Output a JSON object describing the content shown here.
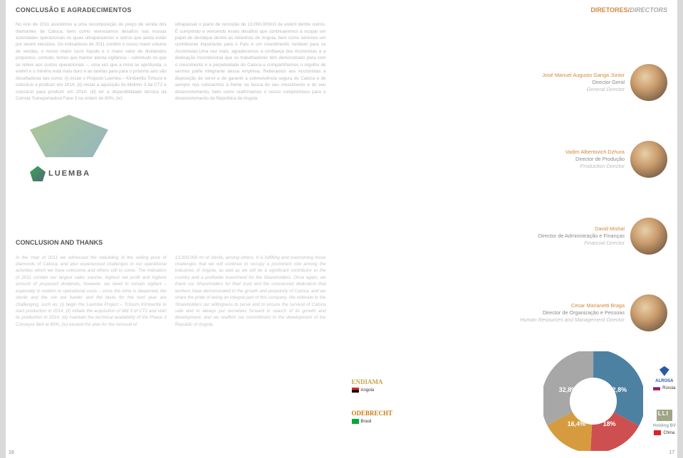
{
  "left": {
    "heading_pt": "CONCLUSÃO E AGRADECIMENTOS",
    "heading_en": "CONCLUSION AND THANKS",
    "pt_col1": "No Ano de 2011 assistimos a uma recomposição do preço de venda dos diamantes de Catoca, bem como vivenciamos desafios nas nossas actividades operacionais os quais ultrapassamos e outros que ainda estão por serem vencidos. Os indicadores de 2011 contêm o nosso maior volume de vendas, o nosso maior lucro líquido e o maior valor de dividendos propostos; contudo, temos que manter atenta vigilância – sobretudo no que se refere aos custos operacionais –, uma vez que a mina se aprofunda, o estéril e o minério está mais duro e as tarefas para para o próximo ano são desafiadoras tais como: (i) iniciar o Projecto Luemba – Kimberlito Tchiuzo e colocá-lo a produzir em 2014, (ii) iniciar a aquisição do Moinho 3 da CT2 e colocá-lo para produzir em 2014, (iii) ter a disponibilidade técnica da Correia Transportadora Fase 3 na ordem de 80%, (iv)",
    "pt_col2": "ultrapassar o plano de remoção de 13.000.000m3 de estéril dentre outros. É cumprindo e vencendo esses desafios que continuaremos a ocupar um papel de destaque dentre as indústrias de Angola, bem como seremos um contribuinte importante para o País e um investimento rentável para os Accionistas.Uma vez mais, agradecemos a confiança dos Accionistas e a dedicação incondicional que os trabalhadores têm demonstrado para com o crescimento e a perpetuidade do Catoca e compartilhamos o orgulho de sermos parte integrante dessa empresa. Reiteramos aos Accionistas a disposição de servir e de garantir a sobrevivência segura do Catoca e de sempre nos colocarmos à frente na busca do seu crescimento e do seu desenvolvimento, bem como reafirmamos o nosso compromisso para o desenvolvimento da República de Angola.",
    "en_col1": "In the Year of 2011 we witnessed the rebuilding of the selling price of diamonds of Catoca, and also experienced challenges in our operational activities which we have overcome and others still to come. The indicators of 2011 contain our largest sales volume, highest net profit and highest amount of proposed dividends; however, we need to remain vigilant – especially in relation to operational costs – since the mine is deepened, the sterile and the ore are harder and the tasks for the next year are challenging, such as: (i) begin the Luemba Project – Tchiuzo Kimberlite to start production in 2014, (ii) initiate the acquisition of Mill 3 of CT2 and start its production in 2014, (iii) maintain the technical availability of the Phase 3 Conveyor Belt at 80%, (iv) exceed the plan for the removal of",
    "en_col2": "13,000,000 m³ of sterile, among others. It is fulfilling and overcoming those challenges that we will continue to occupy a prominent role among the industries of Angola, as well as we will be a significant contributor to the country and a profitable investment for the Shareholders. Once again, we thank our Shareholders for their trust and the unreserved dedication that workers have demonstrated to the growth and perpetuity of Catoca, and we share the pride of being an integral part of this company. We reiterate to the Shareholders our willingness to serve and to ensure the survival of Catoca safe and to always put ourselves forward in search of its growth and development, and we reaffirm our commitment to the development of the Republic of Angola.",
    "luemba": "LUEMBA",
    "page_no": "16"
  },
  "right": {
    "heading_pt": "DIRETORES/",
    "heading_en": "DIRECTORS",
    "directors": [
      {
        "name": "José Manuel Augusto Ganga Júnior",
        "pt": "Director Geral",
        "en": "General Director"
      },
      {
        "name": "Vadim Albertovich Dzhura",
        "pt": "Director de Produção",
        "en": "Production Director"
      },
      {
        "name": "David Mishal",
        "pt": "Director de Administração e Finanças",
        "en": "Financial Director"
      },
      {
        "name": "Cesar Marianetti Braga",
        "pt": "Director de Organização e Pessoas",
        "en": "Human Resources and Management Director"
      }
    ],
    "partners": {
      "endiama": "ENDIAMA",
      "endiama_country": "Angola",
      "odebrecht": "ODEBRECHT",
      "odebrecht_country": "Brasil",
      "alrosa": "ALROSA",
      "alrosa_country": "Rússia",
      "lli": "Holding BV",
      "lli_country": "China"
    },
    "donut": {
      "segments": [
        {
          "label": "32,8%",
          "value": 32.8,
          "color": "#a7a7a7"
        },
        {
          "label": "32,8%",
          "value": 32.8,
          "color": "#4c81a1"
        },
        {
          "label": "18%",
          "value": 18.0,
          "color": "#ce4f4f"
        },
        {
          "label": "16,4%",
          "value": 16.4,
          "color": "#d69b3f"
        }
      ],
      "inner_color": "#ffffff"
    },
    "page_no": "17"
  }
}
